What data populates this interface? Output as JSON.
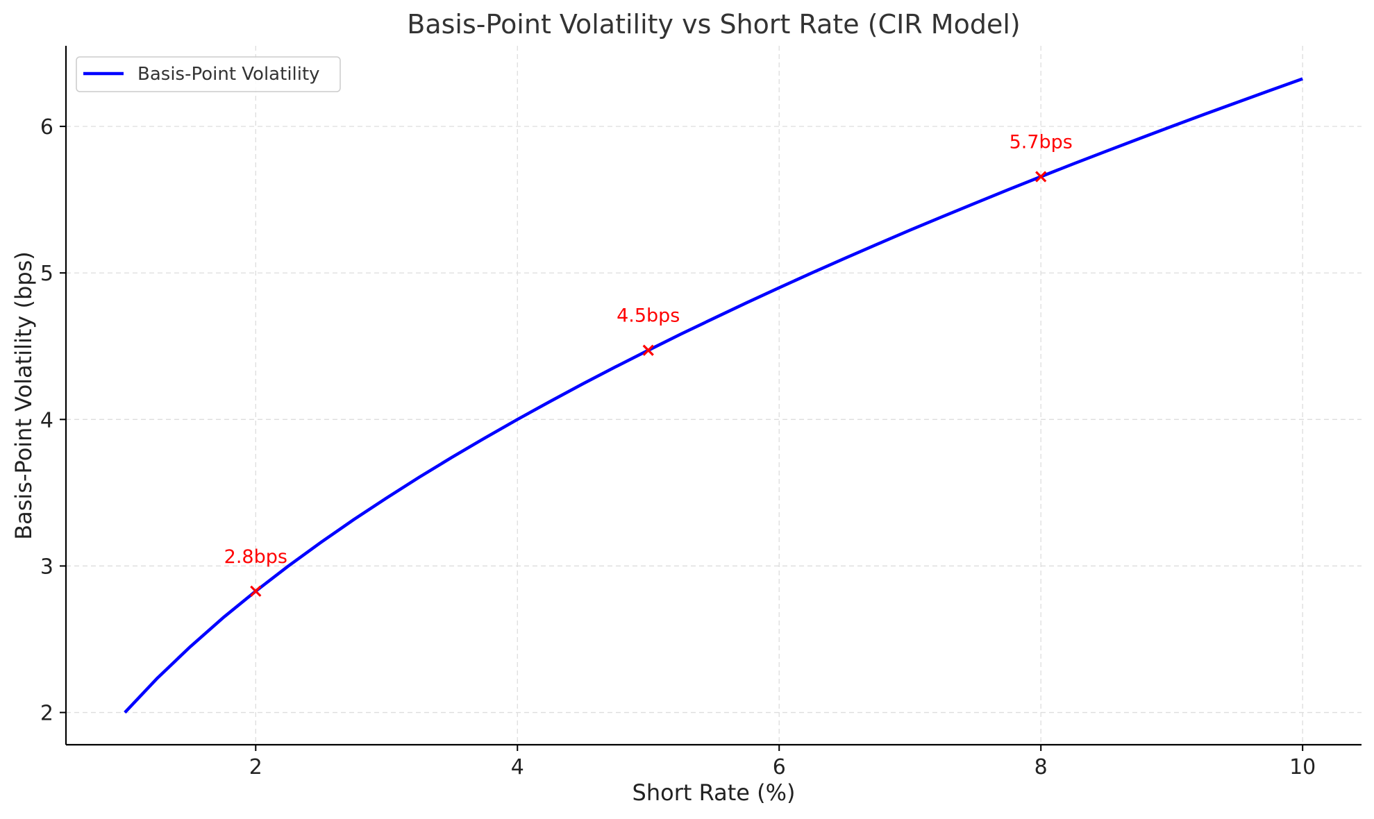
{
  "chart_data": {
    "type": "line",
    "title": "Basis-Point Volatility vs Short Rate (CIR Model)",
    "xlabel": "Short Rate (%)",
    "ylabel": "Basis-Point Volatility (bps)",
    "xlim": [
      0.55,
      10.45
    ],
    "ylim": [
      1.78,
      6.55
    ],
    "xticks": [
      2,
      4,
      6,
      8,
      10
    ],
    "yticks": [
      2,
      3,
      4,
      5,
      6
    ],
    "grid": true,
    "legend_position": "upper-left",
    "series": [
      {
        "name": "Basis-Point Volatility",
        "color": "#0000ff",
        "x": [
          1.0,
          1.25,
          1.5,
          1.75,
          2.0,
          2.25,
          2.5,
          2.75,
          3.0,
          3.25,
          3.5,
          3.75,
          4.0,
          4.25,
          4.5,
          4.75,
          5.0,
          5.25,
          5.5,
          5.75,
          6.0,
          6.25,
          6.5,
          6.75,
          7.0,
          7.25,
          7.5,
          7.75,
          8.0,
          8.25,
          8.5,
          8.75,
          9.0,
          9.25,
          9.5,
          9.75,
          10.0
        ],
        "y": [
          2.0,
          2.236,
          2.449,
          2.646,
          2.828,
          3.0,
          3.162,
          3.317,
          3.464,
          3.606,
          3.742,
          3.873,
          4.0,
          4.123,
          4.243,
          4.359,
          4.472,
          4.583,
          4.69,
          4.796,
          4.899,
          5.0,
          5.099,
          5.196,
          5.292,
          5.385,
          5.477,
          5.568,
          5.657,
          5.745,
          5.831,
          5.916,
          6.0,
          6.083,
          6.164,
          6.245,
          6.325
        ]
      }
    ],
    "markers": [
      {
        "x": 2,
        "y": 2.828,
        "label": "2.8bps",
        "color": "#ff0000"
      },
      {
        "x": 5,
        "y": 4.472,
        "label": "4.5bps",
        "color": "#ff0000"
      },
      {
        "x": 8,
        "y": 5.657,
        "label": "5.7bps",
        "color": "#ff0000"
      }
    ]
  }
}
